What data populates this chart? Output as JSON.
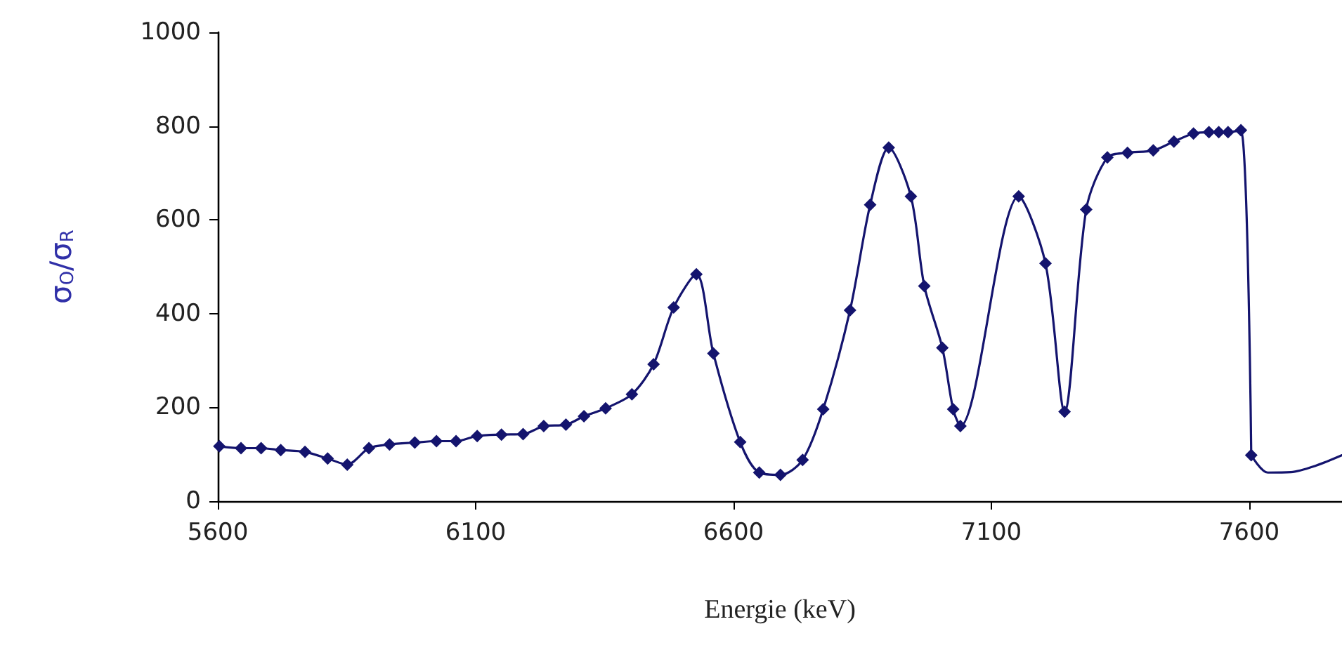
{
  "chart_data": {
    "type": "line",
    "xlabel": "Energie (keV)",
    "ylabel": "σ$_{O}$/σ$_{R}$",
    "xlim": [
      5600,
      7780
    ],
    "xticks": [
      5600,
      6100,
      6600,
      7100,
      7600
    ],
    "ylim": [
      0,
      1000
    ],
    "yticks": [
      0,
      200,
      400,
      600,
      800,
      1000
    ],
    "grid": false,
    "marker": "diamond",
    "line_style": "solid",
    "series": [
      {
        "color": "#14146e",
        "x": [
          5603,
          5645,
          5684,
          5722,
          5769,
          5813,
          5851,
          5893,
          5933,
          5982,
          6024,
          6062,
          6103,
          6150,
          6192,
          6232,
          6275,
          6310,
          6352,
          6403,
          6445,
          6484,
          6528,
          6561,
          6613,
          6650,
          6691,
          6734,
          6774,
          6826,
          6865,
          6901,
          6944,
          6970,
          7005,
          7026,
          7040,
          7153,
          7205,
          7242,
          7284,
          7325,
          7364,
          7414,
          7454,
          7492,
          7522,
          7541,
          7559,
          7584,
          7604
        ],
        "values": [
          117,
          113,
          113,
          109,
          105,
          91,
          78,
          113,
          121,
          125,
          128,
          128,
          139,
          142,
          143,
          160,
          163,
          181,
          198,
          228,
          292,
          413,
          484,
          315,
          126,
          61,
          56,
          88,
          196,
          407,
          632,
          754,
          650,
          459,
          327,
          196,
          160,
          650,
          507,
          191,
          622,
          733,
          743,
          748,
          767,
          784,
          787,
          787,
          787,
          791,
          98
        ]
      },
      {
        "color": "#14146e",
        "marker": "none",
        "x": [
          7604,
          7636,
          7681,
          7730,
          7780
        ],
        "values": [
          98,
          61,
          62,
          76,
          98
        ]
      }
    ]
  }
}
